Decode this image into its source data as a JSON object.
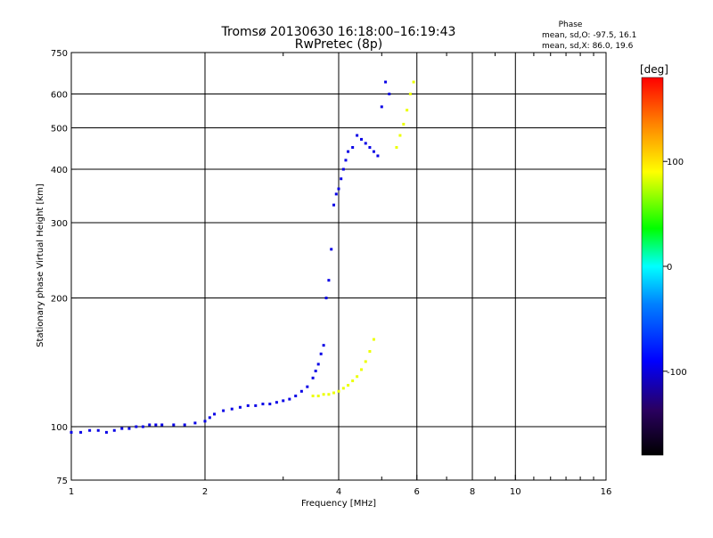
{
  "chart_data": {
    "type": "scatter",
    "title": "Tromsø 20130630 16:18:00–16:19:43",
    "subtitle": "RwPretec (8p)",
    "xlabel": "Frequency [MHz]",
    "ylabel": "Stationary phase Virtual Height [km]",
    "x_scale": "log",
    "y_scale": "log",
    "xlim": [
      1,
      16
    ],
    "ylim": [
      75,
      750
    ],
    "x_ticks": [
      1,
      2,
      4,
      6,
      8,
      10,
      16
    ],
    "x_tick_labels": [
      "1",
      "2",
      "4",
      "6",
      "8",
      "10",
      "16"
    ],
    "y_ticks": [
      75,
      100,
      200,
      300,
      400,
      500,
      600,
      750
    ],
    "y_tick_labels": [
      "75",
      "100",
      "200",
      "300",
      "400",
      "500",
      "600",
      "750"
    ],
    "grid": true,
    "stats": {
      "heading": "Phase",
      "lines": [
        "mean, sd,O: -97.5, 16.1",
        "mean, sd,X: 86.0, 19.6"
      ]
    },
    "colorbar": {
      "label": "[deg]",
      "range": [
        -180,
        180
      ],
      "tick_values": [
        100,
        0,
        -100
      ],
      "tick_labels": [
        "100",
        "0",
        "-100"
      ]
    },
    "series": [
      {
        "mode": "O",
        "phase_deg": -97.5,
        "x": [
          1.0,
          1.05,
          1.1,
          1.15,
          1.2,
          1.25,
          1.3,
          1.35,
          1.4,
          1.45,
          1.5,
          1.55,
          1.6,
          1.7,
          1.8,
          1.9,
          2.0,
          2.05,
          2.1,
          2.2,
          2.3,
          2.4,
          2.5,
          2.6,
          2.7,
          2.8,
          2.9,
          3.0,
          3.1,
          3.2,
          3.3,
          3.4,
          3.5,
          3.55,
          3.6,
          3.65,
          3.7,
          3.75,
          3.8,
          3.85,
          3.9,
          3.95,
          4.0,
          4.05,
          4.1,
          4.15,
          4.2,
          4.3,
          4.4,
          4.5,
          4.6,
          4.7,
          4.8,
          4.9,
          5.0,
          5.1,
          5.2
        ],
        "y": [
          97,
          97,
          98,
          98,
          97,
          98,
          99,
          99,
          100,
          100,
          101,
          101,
          101,
          101,
          101,
          102,
          103,
          105,
          107,
          109,
          110,
          111,
          112,
          112,
          113,
          113,
          114,
          115,
          116,
          118,
          121,
          124,
          130,
          135,
          140,
          148,
          155,
          200,
          220,
          260,
          330,
          350,
          360,
          380,
          400,
          420,
          440,
          450,
          480,
          470,
          460,
          450,
          440,
          430,
          560,
          640,
          600
        ]
      },
      {
        "mode": "X",
        "phase_deg": 86.0,
        "x": [
          3.5,
          3.6,
          3.7,
          3.8,
          3.9,
          4.0,
          4.1,
          4.2,
          4.3,
          4.4,
          4.5,
          4.6,
          4.7,
          4.8,
          5.4,
          5.5,
          5.6,
          5.7,
          5.8,
          5.9
        ],
        "y": [
          118,
          118,
          119,
          119,
          120,
          121,
          123,
          125,
          128,
          131,
          136,
          142,
          150,
          160,
          450,
          480,
          510,
          550,
          600,
          640
        ]
      }
    ]
  }
}
